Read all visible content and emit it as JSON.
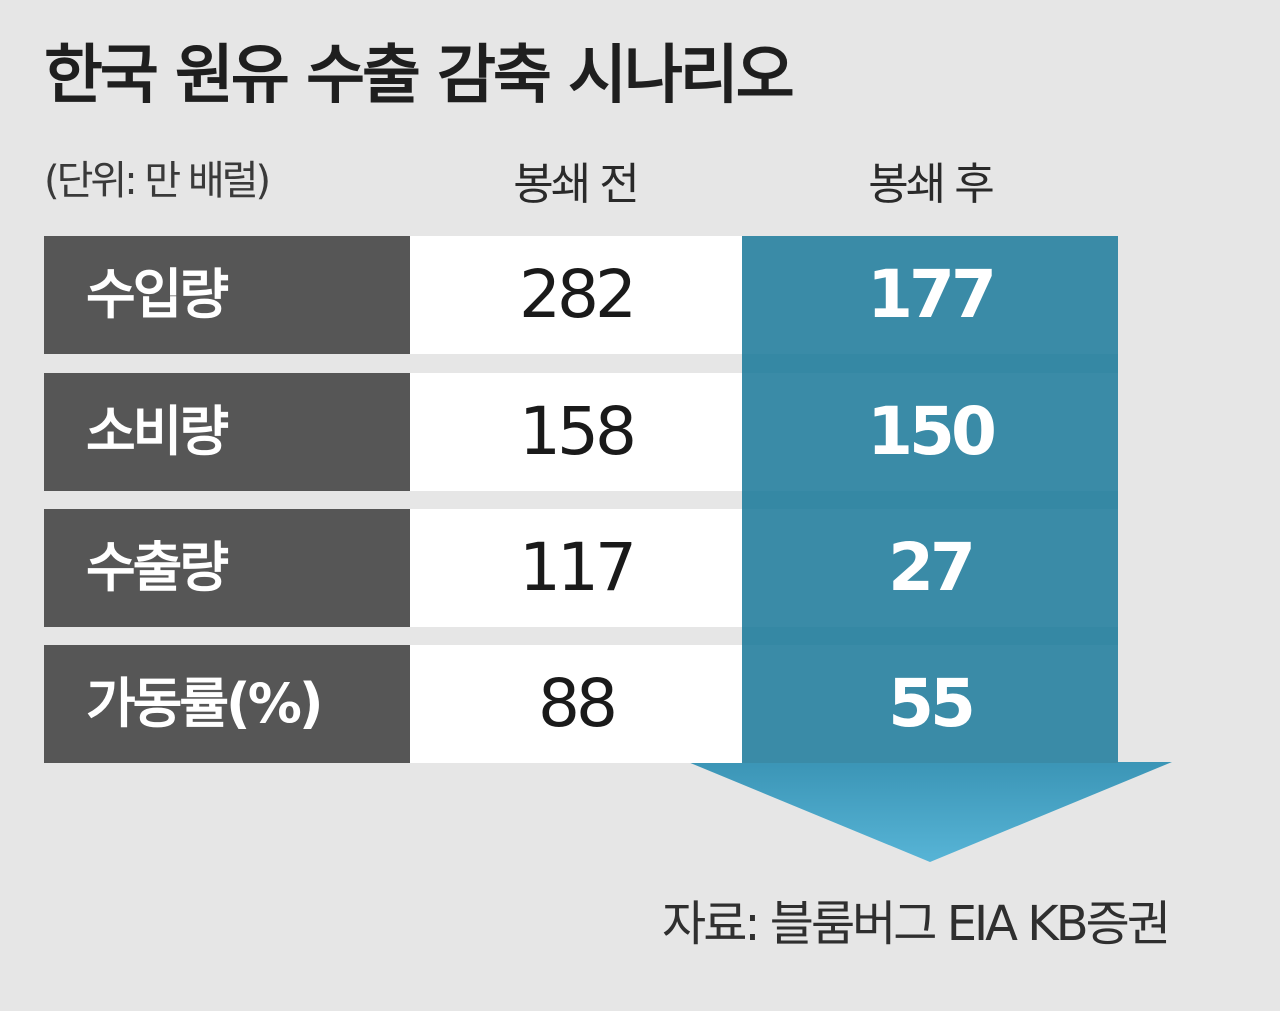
{
  "title": "한국 원유 수출 감축 시나리오",
  "unit": "(단위: 만 배럴)",
  "columns": {
    "before": "봉쇄 전",
    "after": "봉쇄 후"
  },
  "rows": [
    {
      "label": "수입량",
      "before": "282",
      "after": "177"
    },
    {
      "label": "소비량",
      "before": "158",
      "after": "150"
    },
    {
      "label": "수출량",
      "before": "117",
      "after": "27"
    },
    {
      "label": "가동률(%)",
      "before": "88",
      "after": "55"
    }
  ],
  "source": "자료: 블룸버그 EIA KB증권",
  "colors": {
    "background": "#e6e6e6",
    "label_bg": "#565656",
    "after_bg": "#3a8ba7",
    "arrow": "#4aa6c7"
  }
}
